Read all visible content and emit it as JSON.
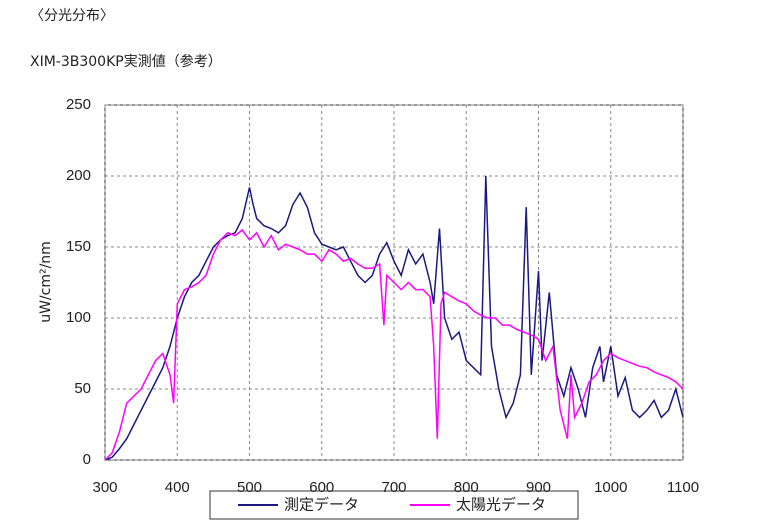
{
  "section": "〈分光分布〉",
  "chart_data": {
    "type": "line",
    "title": "XIM-3B300KP実測値（参考）",
    "y_label": "uW/cm²/nm",
    "xlim": [
      300,
      1100
    ],
    "xticks": [
      300,
      400,
      500,
      600,
      700,
      800,
      900,
      1000,
      1100
    ],
    "ylim": [
      0,
      250
    ],
    "yticks": [
      0,
      50,
      100,
      150,
      200,
      250
    ],
    "grid": true,
    "legend": "bottom",
    "series": [
      {
        "name": "測定データ",
        "color": "#1a1a80",
        "x": [
          300,
          310,
          320,
          330,
          340,
          350,
          360,
          370,
          380,
          390,
          400,
          410,
          420,
          430,
          440,
          450,
          460,
          470,
          480,
          490,
          500,
          505,
          510,
          520,
          530,
          540,
          550,
          560,
          570,
          580,
          590,
          600,
          610,
          620,
          630,
          640,
          650,
          660,
          670,
          680,
          690,
          700,
          710,
          720,
          730,
          740,
          750,
          755,
          763,
          770,
          780,
          790,
          800,
          810,
          820,
          827,
          835,
          845,
          855,
          865,
          875,
          883,
          890,
          900,
          905,
          915,
          925,
          935,
          945,
          955,
          965,
          975,
          985,
          990,
          1000,
          1010,
          1020,
          1030,
          1040,
          1050,
          1060,
          1070,
          1080,
          1090,
          1100
        ],
        "values": [
          0,
          2,
          8,
          15,
          25,
          35,
          45,
          55,
          65,
          80,
          100,
          115,
          125,
          130,
          140,
          150,
          155,
          158,
          160,
          170,
          192,
          180,
          170,
          165,
          163,
          160,
          165,
          180,
          188,
          178,
          160,
          152,
          150,
          148,
          150,
          140,
          130,
          125,
          130,
          145,
          153,
          140,
          130,
          148,
          138,
          145,
          125,
          110,
          163,
          100,
          85,
          90,
          70,
          65,
          60,
          200,
          80,
          50,
          30,
          40,
          60,
          178,
          60,
          133,
          70,
          118,
          60,
          45,
          65,
          50,
          30,
          65,
          80,
          55,
          80,
          45,
          58,
          35,
          30,
          35,
          42,
          30,
          35,
          50,
          30
        ]
      },
      {
        "name": "太陽光データ",
        "color": "#ff00ff",
        "x": [
          300,
          310,
          320,
          330,
          340,
          350,
          360,
          370,
          380,
          390,
          395,
          400,
          410,
          420,
          430,
          440,
          450,
          460,
          470,
          480,
          490,
          500,
          510,
          520,
          530,
          540,
          550,
          560,
          570,
          580,
          590,
          600,
          610,
          620,
          630,
          640,
          650,
          660,
          670,
          680,
          686,
          690,
          700,
          710,
          720,
          730,
          740,
          750,
          755,
          760,
          765,
          770,
          780,
          790,
          800,
          810,
          820,
          830,
          840,
          850,
          860,
          870,
          880,
          890,
          900,
          910,
          920,
          930,
          940,
          945,
          950,
          960,
          970,
          980,
          990,
          1000,
          1010,
          1020,
          1030,
          1040,
          1050,
          1060,
          1070,
          1080,
          1090,
          1100
        ],
        "values": [
          0,
          5,
          20,
          40,
          45,
          50,
          60,
          70,
          75,
          60,
          40,
          110,
          120,
          122,
          125,
          130,
          145,
          155,
          160,
          158,
          162,
          155,
          160,
          150,
          158,
          148,
          152,
          150,
          148,
          145,
          145,
          140,
          148,
          145,
          140,
          142,
          138,
          135,
          135,
          138,
          95,
          130,
          125,
          120,
          125,
          120,
          120,
          115,
          80,
          15,
          110,
          118,
          115,
          112,
          110,
          105,
          102,
          100,
          100,
          95,
          95,
          92,
          90,
          88,
          85,
          70,
          80,
          35,
          15,
          60,
          30,
          40,
          55,
          60,
          70,
          75,
          72,
          70,
          68,
          66,
          65,
          62,
          60,
          58,
          55,
          50
        ]
      }
    ]
  }
}
